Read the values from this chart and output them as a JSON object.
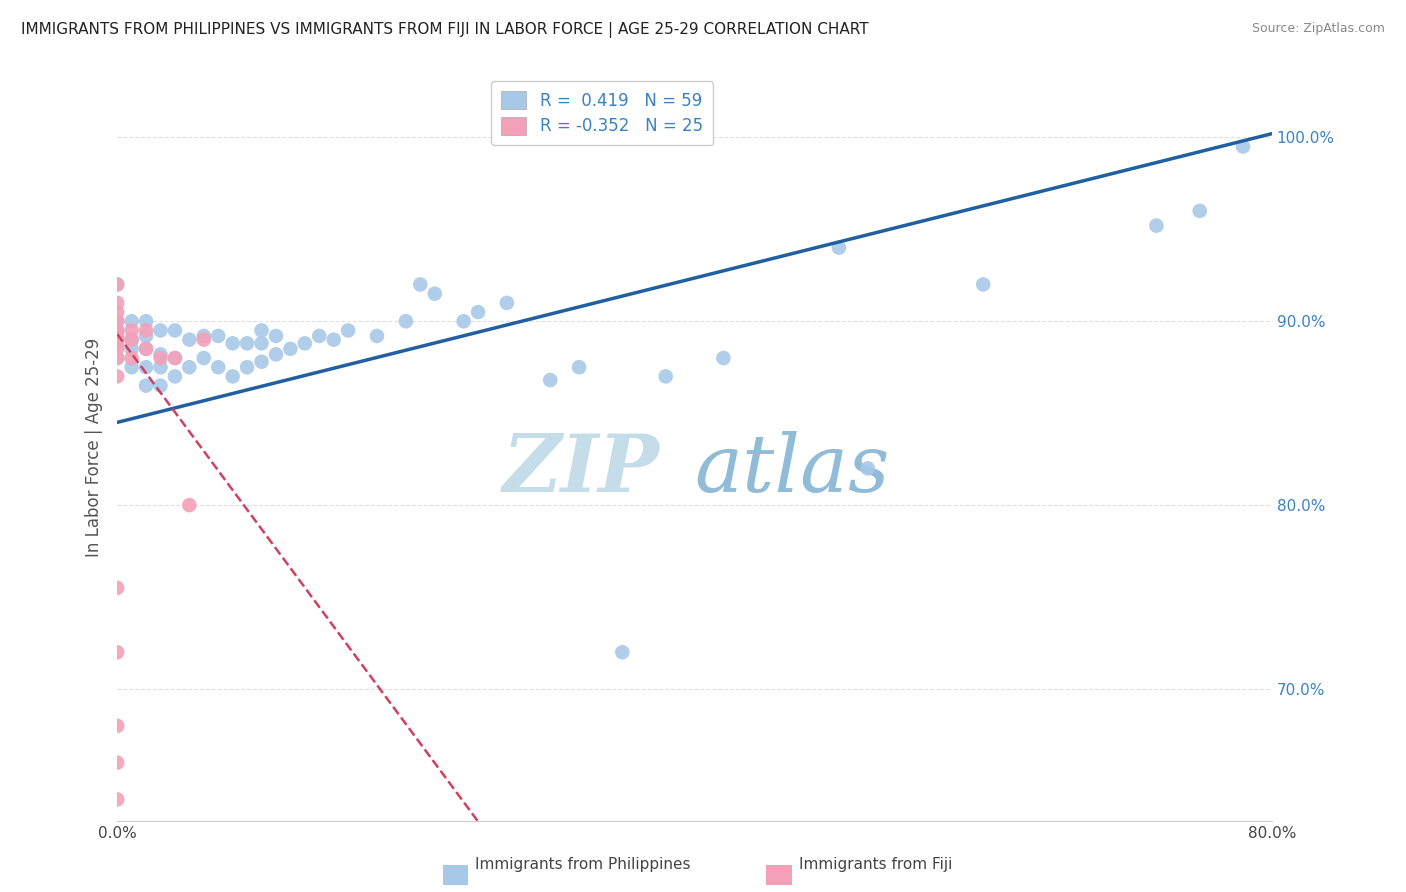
{
  "title": "IMMIGRANTS FROM PHILIPPINES VS IMMIGRANTS FROM FIJI IN LABOR FORCE | AGE 25-29 CORRELATION CHART",
  "source": "Source: ZipAtlas.com",
  "ylabel": "In Labor Force | Age 25-29",
  "xmin": 0.0,
  "xmax": 0.8,
  "ymin": 0.628,
  "ymax": 1.035,
  "yticks": [
    0.7,
    0.8,
    0.9,
    1.0
  ],
  "ytick_labels": [
    "70.0%",
    "80.0%",
    "90.0%",
    "100.0%"
  ],
  "r_philippines": 0.419,
  "n_philippines": 59,
  "r_fiji": -0.352,
  "n_fiji": 25,
  "blue_color": "#a8c8e8",
  "pink_color": "#f4a0b8",
  "blue_line_color": "#2060a0",
  "pink_line_color": "#d04060",
  "philippines_x": [
    0.0,
    0.0,
    0.0,
    0.0,
    0.0,
    0.01,
    0.01,
    0.01,
    0.01,
    0.02,
    0.02,
    0.02,
    0.02,
    0.02,
    0.03,
    0.03,
    0.03,
    0.03,
    0.04,
    0.04,
    0.04,
    0.05,
    0.05,
    0.06,
    0.06,
    0.07,
    0.07,
    0.08,
    0.08,
    0.09,
    0.09,
    0.1,
    0.1,
    0.1,
    0.11,
    0.11,
    0.12,
    0.13,
    0.14,
    0.15,
    0.16,
    0.18,
    0.2,
    0.21,
    0.22,
    0.24,
    0.25,
    0.27,
    0.3,
    0.32,
    0.35,
    0.38,
    0.42,
    0.5,
    0.52,
    0.6,
    0.72,
    0.75,
    0.78
  ],
  "philippines_y": [
    0.88,
    0.89,
    0.895,
    0.9,
    0.92,
    0.875,
    0.885,
    0.89,
    0.9,
    0.865,
    0.875,
    0.885,
    0.892,
    0.9,
    0.865,
    0.875,
    0.882,
    0.895,
    0.87,
    0.88,
    0.895,
    0.875,
    0.89,
    0.88,
    0.892,
    0.875,
    0.892,
    0.87,
    0.888,
    0.875,
    0.888,
    0.878,
    0.888,
    0.895,
    0.882,
    0.892,
    0.885,
    0.888,
    0.892,
    0.89,
    0.895,
    0.892,
    0.9,
    0.92,
    0.915,
    0.9,
    0.905,
    0.91,
    0.868,
    0.875,
    0.72,
    0.87,
    0.88,
    0.94,
    0.82,
    0.92,
    0.952,
    0.96,
    0.995
  ],
  "fiji_x": [
    0.0,
    0.0,
    0.0,
    0.0,
    0.0,
    0.0,
    0.0,
    0.0,
    0.0,
    0.0,
    0.0,
    0.01,
    0.01,
    0.01,
    0.02,
    0.02,
    0.03,
    0.04,
    0.05,
    0.06,
    0.0,
    0.0,
    0.0,
    0.0,
    0.0
  ],
  "fiji_y": [
    0.87,
    0.88,
    0.885,
    0.888,
    0.89,
    0.892,
    0.895,
    0.9,
    0.905,
    0.91,
    0.92,
    0.88,
    0.89,
    0.895,
    0.885,
    0.895,
    0.88,
    0.88,
    0.8,
    0.89,
    0.64,
    0.66,
    0.68,
    0.72,
    0.755
  ],
  "watermark_top": "ZIP",
  "watermark_bottom": "atlas",
  "watermark_color_top": "#c8dce8",
  "watermark_color_bottom": "#b8d0e8",
  "background_color": "#ffffff",
  "grid_color": "#dddddd"
}
